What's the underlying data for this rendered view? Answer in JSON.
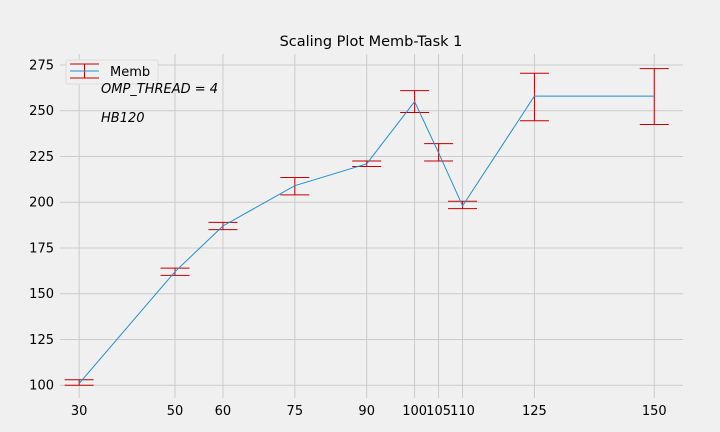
{
  "chart_data": {
    "type": "line",
    "title": "Scaling Plot Memb-Task 1",
    "xlabel": "",
    "ylabel": "",
    "x": [
      30,
      50,
      60,
      75,
      90,
      100,
      105,
      110,
      125,
      150
    ],
    "x_tick_labels": [
      "30",
      "50",
      "60",
      "75",
      "90",
      "100",
      "105",
      "110",
      "125",
      "150"
    ],
    "xlim": [
      26,
      156
    ],
    "ylim": [
      93,
      281
    ],
    "y_ticks": [
      100,
      125,
      150,
      175,
      200,
      225,
      250,
      275
    ],
    "series": [
      {
        "name": "Memb",
        "color": "#1f8fd0",
        "errorbar_color": "#c00000",
        "values": [
          101,
          162,
          187,
          209,
          221,
          255,
          227,
          198,
          258,
          258
        ],
        "error_low": [
          100,
          160,
          185,
          204,
          219.5,
          249,
          222.5,
          196.5,
          244.5,
          242.5
        ],
        "error_high": [
          103,
          164,
          189,
          213.5,
          222.5,
          261,
          232,
          200.5,
          270.5,
          273
        ]
      }
    ],
    "legend_position": "top-left",
    "annotations": [
      "OMP_THREAD = 4",
      "HB120"
    ],
    "grid": true,
    "background": "#f0f0f0"
  }
}
